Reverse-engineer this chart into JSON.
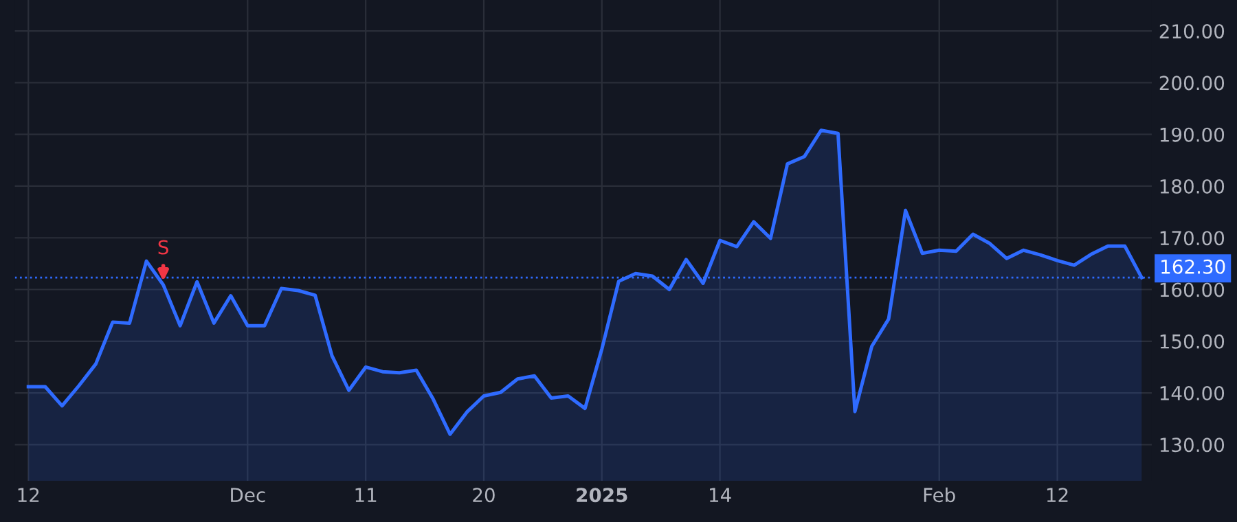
{
  "chart_data": {
    "type": "area",
    "categories": [
      "12",
      null,
      null,
      null,
      null,
      null,
      null,
      null,
      null,
      null,
      null,
      null,
      null,
      "Dec",
      null,
      null,
      null,
      null,
      null,
      null,
      "11",
      null,
      null,
      null,
      null,
      null,
      null,
      "20",
      null,
      null,
      null,
      null,
      null,
      null,
      "2025",
      null,
      null,
      null,
      null,
      null,
      null,
      "14",
      null,
      null,
      null,
      null,
      null,
      null,
      null,
      null,
      null,
      null,
      null,
      null,
      "Feb",
      null,
      null,
      null,
      null,
      null,
      null,
      "12",
      null,
      null,
      null,
      null,
      null
    ],
    "series": [
      {
        "color": "#2f6bff",
        "values": [
          141.2,
          141.2,
          137.5,
          141.4,
          145.6,
          153.7,
          153.5,
          165.5,
          160.9,
          153.0,
          161.5,
          153.5,
          158.8,
          153.0,
          153.0,
          160.2,
          159.8,
          158.9,
          147.2,
          140.5,
          145.0,
          144.1,
          143.9,
          144.4,
          138.8,
          132.0,
          136.3,
          139.4,
          140.1,
          142.7,
          143.3,
          139.0,
          139.4,
          137.0,
          148.5,
          161.6,
          163.1,
          162.6,
          160.0,
          165.8,
          161.2,
          169.5,
          168.3,
          173.1,
          169.9,
          184.3,
          185.7,
          190.8,
          190.2,
          136.4,
          149.0,
          154.3,
          175.3,
          167.0,
          167.6,
          167.4,
          170.7,
          168.9,
          166.0,
          167.6,
          166.7,
          165.6,
          164.7,
          166.8,
          168.4,
          168.4,
          162.3
        ]
      }
    ],
    "ylim": [
      123,
      216
    ],
    "yticks": [
      {
        "value": 130,
        "label": "130.00"
      },
      {
        "value": 140,
        "label": "140.00"
      },
      {
        "value": 150,
        "label": "150.00"
      },
      {
        "value": 160,
        "label": "160.00"
      },
      {
        "value": 170,
        "label": "170.00"
      },
      {
        "value": 180,
        "label": "180.00"
      },
      {
        "value": 190,
        "label": "190.00"
      },
      {
        "value": 200,
        "label": "200.00"
      },
      {
        "value": 210,
        "label": "210.00"
      }
    ],
    "ref_lines": [
      {
        "axis": "y",
        "value": 162.3,
        "label": "162.30",
        "color": "#2f6bff",
        "line_style": "dotted"
      }
    ],
    "annotations": [
      {
        "text": "S",
        "y": 160.9
      }
    ],
    "grid": true
  }
}
